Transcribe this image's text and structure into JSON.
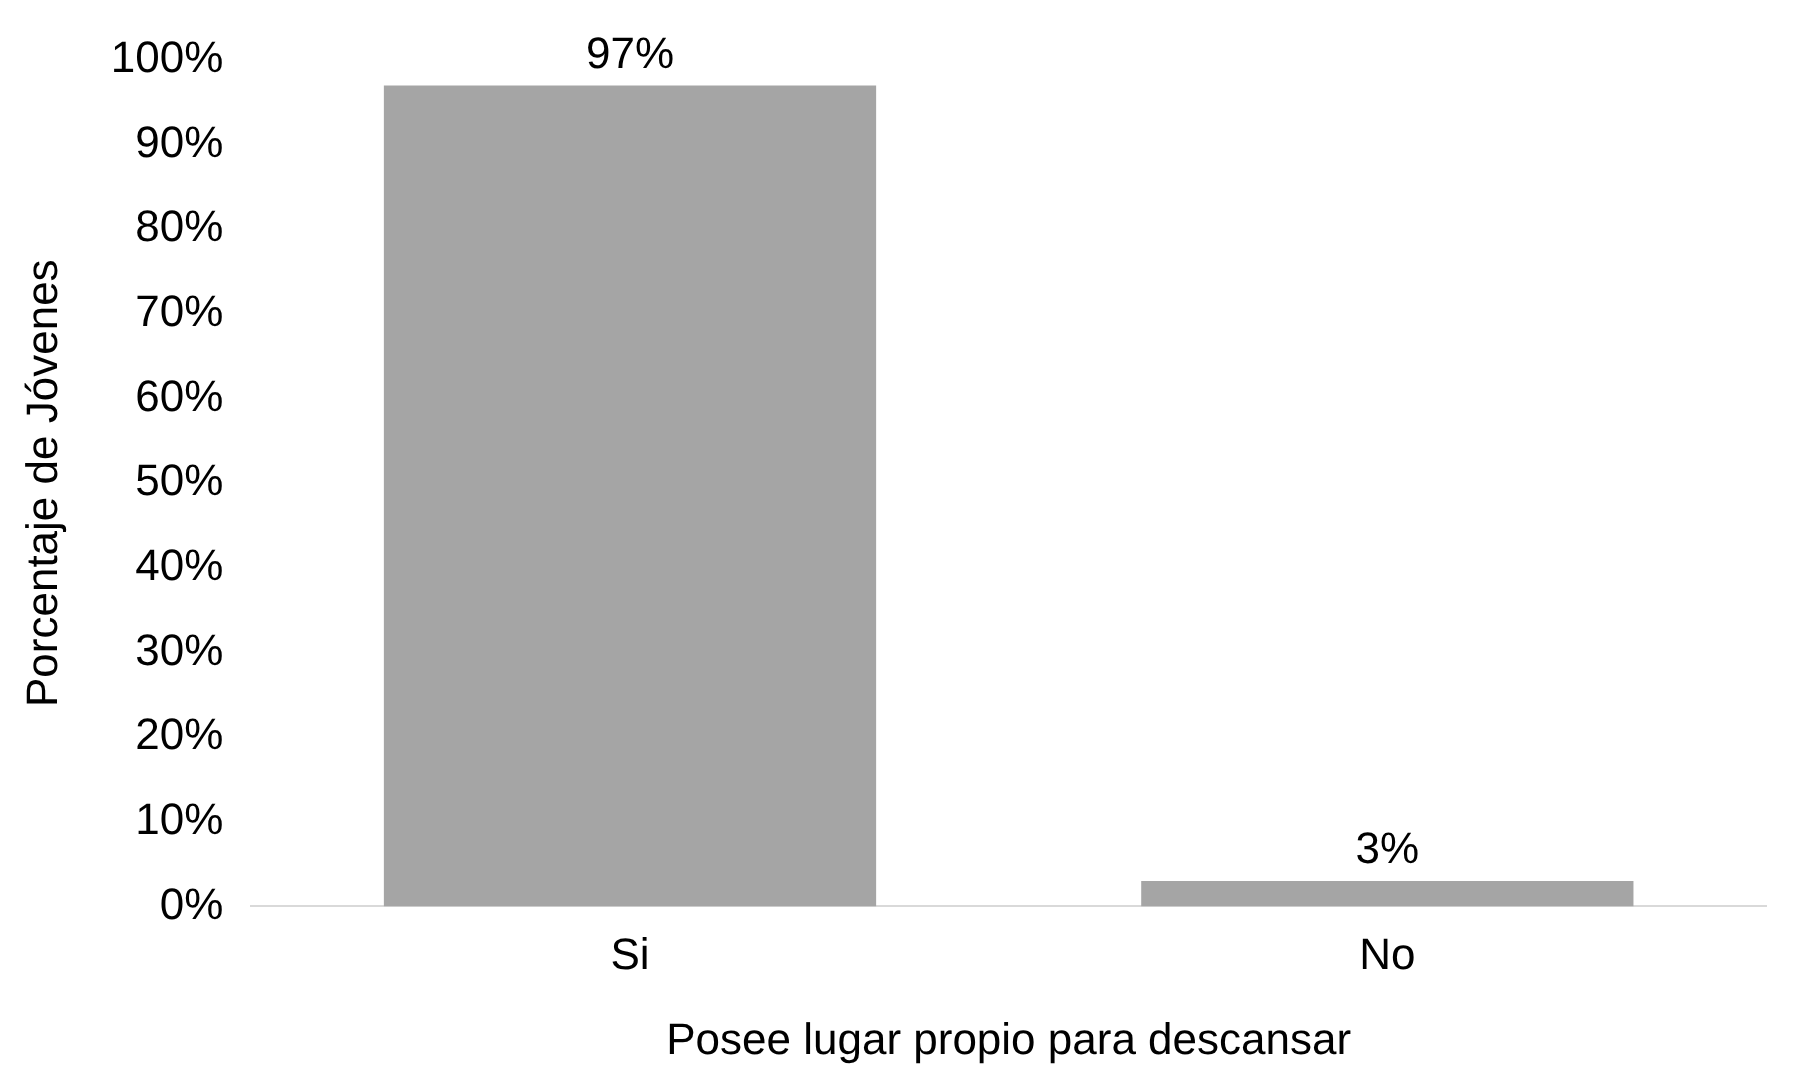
{
  "chart_data": {
    "type": "bar",
    "xlabel": "Posee lugar propio para descansar",
    "ylabel": "Porcentaje de Jóvenes",
    "categories": [
      "Si",
      "No"
    ],
    "values": [
      97,
      3
    ],
    "value_labels": [
      "97%",
      "3%"
    ],
    "color": "#a5a5a5",
    "ylim": [
      0,
      100
    ],
    "yticks": [
      {
        "value": 0,
        "label": "0%"
      },
      {
        "value": 10,
        "label": "10%"
      },
      {
        "value": 20,
        "label": "20%"
      },
      {
        "value": 30,
        "label": "30%"
      },
      {
        "value": 40,
        "label": "40%"
      },
      {
        "value": 50,
        "label": "50%"
      },
      {
        "value": 60,
        "label": "60%"
      },
      {
        "value": 70,
        "label": "70%"
      },
      {
        "value": 80,
        "label": "80%"
      },
      {
        "value": 90,
        "label": "90%"
      },
      {
        "value": 100,
        "label": "100%"
      }
    ],
    "grid": false,
    "legend": false
  }
}
